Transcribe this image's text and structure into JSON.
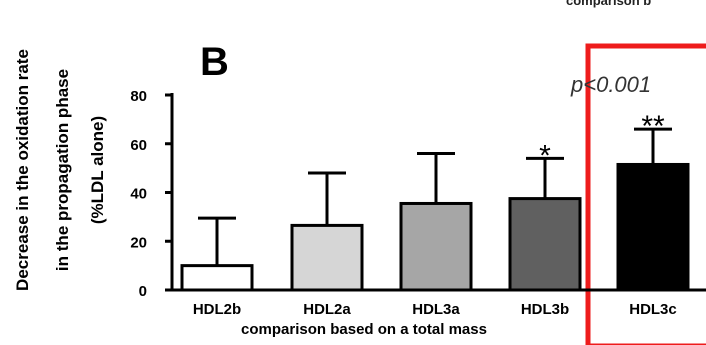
{
  "chart_data": {
    "type": "bar",
    "panel_label": "B",
    "categories": [
      "HDL2b",
      "HDL2a",
      "HDL3a",
      "HDL3b",
      "HDL3c"
    ],
    "values": [
      10,
      26.5,
      35.5,
      37.5,
      51.5
    ],
    "error_upper": [
      29.5,
      48,
      56,
      54,
      66
    ],
    "bar_colors": [
      "#ffffff",
      "#d6d6d6",
      "#a6a6a6",
      "#606060",
      "#000000"
    ],
    "significance": [
      "",
      "",
      "",
      "*",
      "**"
    ],
    "ylabel_lines": [
      "Decrease in the oxidation rate",
      "in the propagation phase",
      "(%LDL alone)"
    ],
    "xlabel": "comparison based on a total mass",
    "ylim": [
      0,
      80
    ],
    "yticks": [
      0,
      20,
      40,
      60,
      80
    ],
    "annotation": "p<0.001",
    "top_cut_text": "comparison b",
    "highlight": {
      "category": "HDL3c",
      "color": "#ee1c1c"
    },
    "grid": false
  }
}
